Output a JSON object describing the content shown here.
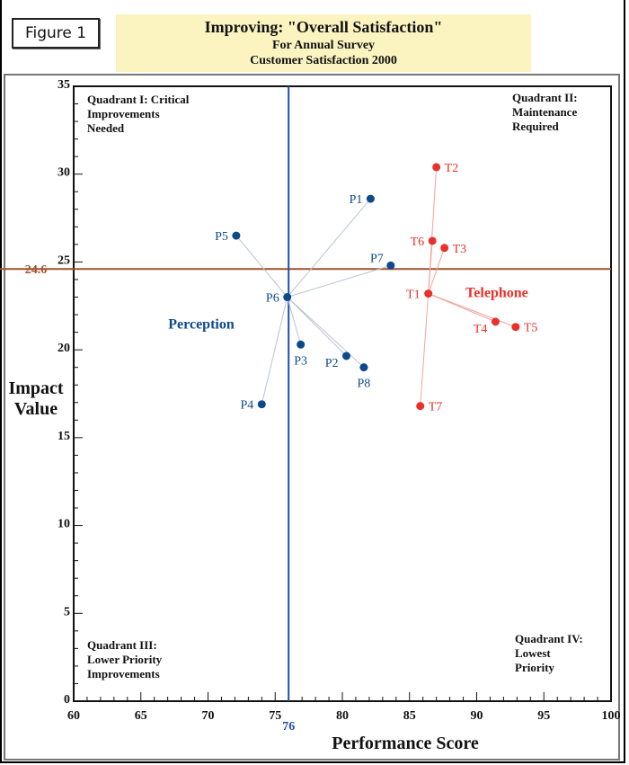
{
  "figure_label": "Figure 1",
  "title": {
    "line1": "Improving: \"Overall Satisfaction\"",
    "line2": "For Annual Survey",
    "line3": "Customer Satisfaction 2000"
  },
  "colors": {
    "perception": "#0e4a8a",
    "telephone": "#e8312a",
    "threshold_h": "#a0522d",
    "threshold_v": "#1f4fa8",
    "connector_p": "#b8c4d0",
    "connector_t": "#f1a5a0"
  },
  "chart_data": {
    "type": "scatter",
    "title": "Improving: \"Overall Satisfaction\"",
    "subtitle": "For Annual Survey / Customer Satisfaction 2000",
    "xlabel": "Performance Score",
    "ylabel": "Impact Value",
    "ylabel_lines": [
      "Impact",
      "Value"
    ],
    "xlim": [
      60,
      100
    ],
    "ylim": [
      0,
      35
    ],
    "xticks": [
      60,
      65,
      70,
      75,
      80,
      85,
      90,
      95,
      100
    ],
    "yticks": [
      0,
      5,
      10,
      15,
      20,
      25,
      30,
      35
    ],
    "x_minor_step": 1,
    "y_minor_step": 1,
    "grid": false,
    "thresholds": {
      "x": {
        "value": 76,
        "label": "76"
      },
      "y": {
        "value": 24.6,
        "label": "24.6"
      }
    },
    "quadrants": [
      {
        "id": "I",
        "lines": [
          "Quadrant I: Critical",
          "Improvements",
          "Needed"
        ],
        "position": "top-left"
      },
      {
        "id": "II",
        "lines": [
          "Quadrant II:",
          "Maintenance",
          "Required"
        ],
        "position": "top-right"
      },
      {
        "id": "III",
        "lines": [
          "Quadrant III:",
          "Lower Priority",
          "Improvements"
        ],
        "position": "bottom-left"
      },
      {
        "id": "IV",
        "lines": [
          "Quadrant IV:",
          "Lowest",
          "Priority"
        ],
        "position": "bottom-right"
      }
    ],
    "series": [
      {
        "name": "Perception",
        "color_key": "perception",
        "hub": "P6",
        "label_pos": [
          69.5,
          21.2
        ],
        "points": [
          {
            "label": "P1",
            "x": 82.1,
            "y": 28.6,
            "lp": "left"
          },
          {
            "label": "P2",
            "x": 80.3,
            "y": 19.65,
            "lp": "below-left"
          },
          {
            "label": "P3",
            "x": 76.9,
            "y": 20.3,
            "lp": "below"
          },
          {
            "label": "P4",
            "x": 74.0,
            "y": 16.9,
            "lp": "left"
          },
          {
            "label": "P5",
            "x": 72.1,
            "y": 26.5,
            "lp": "left"
          },
          {
            "label": "P6",
            "x": 75.9,
            "y": 23.0,
            "lp": "left"
          },
          {
            "label": "P7",
            "x": 83.6,
            "y": 24.8,
            "lp": "above-left"
          },
          {
            "label": "P8",
            "x": 81.6,
            "y": 19.0,
            "lp": "below"
          }
        ]
      },
      {
        "name": "Telephone",
        "color_key": "telephone",
        "hub": "T1",
        "label_pos": [
          91.5,
          23.0
        ],
        "points": [
          {
            "label": "T1",
            "x": 86.4,
            "y": 23.2,
            "lp": "left"
          },
          {
            "label": "T2",
            "x": 87.0,
            "y": 30.4,
            "lp": "right"
          },
          {
            "label": "T3",
            "x": 87.6,
            "y": 25.8,
            "lp": "right"
          },
          {
            "label": "T4",
            "x": 91.4,
            "y": 21.6,
            "lp": "below-left"
          },
          {
            "label": "T5",
            "x": 92.9,
            "y": 21.3,
            "lp": "right"
          },
          {
            "label": "T6",
            "x": 86.7,
            "y": 26.2,
            "lp": "left"
          },
          {
            "label": "T7",
            "x": 85.8,
            "y": 16.8,
            "lp": "right"
          }
        ]
      }
    ]
  }
}
